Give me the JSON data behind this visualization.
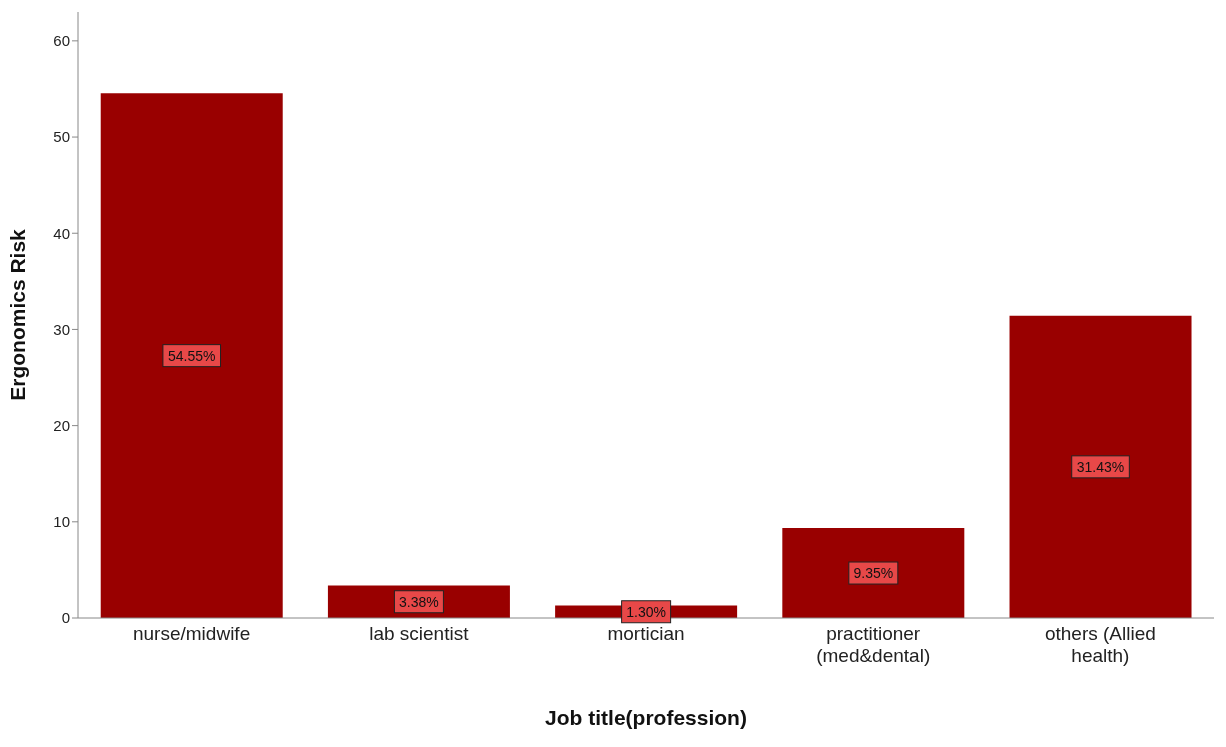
{
  "chart_data": {
    "type": "bar",
    "xlabel": "Job title(profession)",
    "ylabel": "Ergonomics  Risk",
    "categories": [
      "nurse/midwife",
      "lab scientist",
      "mortician",
      "practitioner (med&dental)",
      "others (Allied health)"
    ],
    "values": [
      54.55,
      3.38,
      1.3,
      9.35,
      31.43
    ],
    "value_labels": [
      "54.55%",
      "3.38%",
      "1.30%",
      "9.35%",
      "31.43%"
    ],
    "color": "#990000",
    "ylim": [
      0,
      63
    ],
    "yticks": [
      0,
      10,
      20,
      30,
      40,
      50,
      60
    ],
    "grid": false,
    "legend": false
  }
}
